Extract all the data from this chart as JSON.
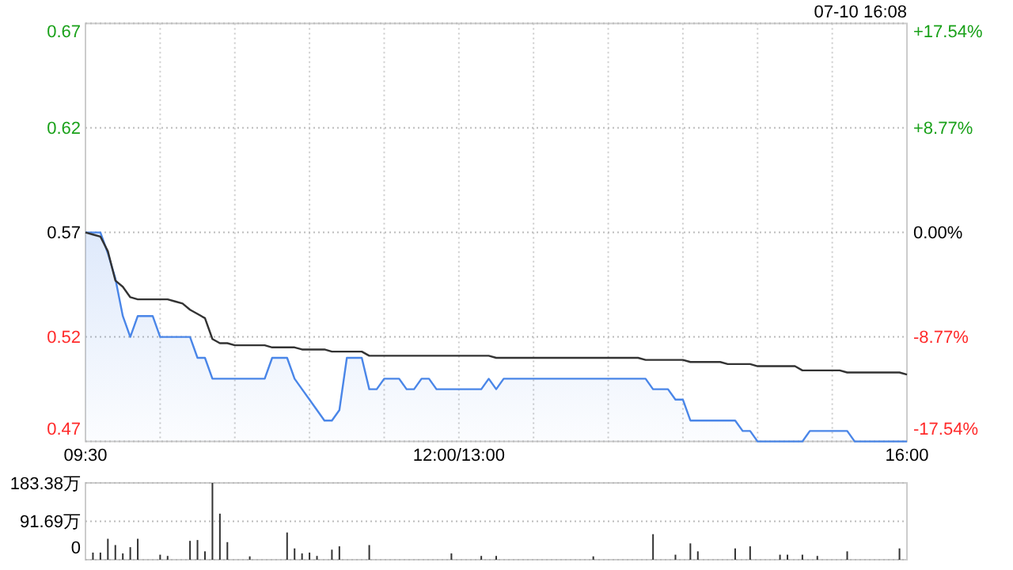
{
  "chart_data": [
    {
      "type": "line",
      "annotations": [
        "07-10 16:08"
      ],
      "categories": [
        "09:30",
        null,
        null,
        null,
        null,
        null,
        null,
        null,
        null,
        null,
        null,
        null,
        null,
        null,
        null,
        null,
        null,
        null,
        null,
        null,
        null,
        null,
        null,
        null,
        null,
        null,
        null,
        null,
        null,
        null,
        null,
        null,
        null,
        null,
        null,
        null,
        null,
        null,
        null,
        null,
        null,
        null,
        null,
        null,
        null,
        null,
        null,
        null,
        null,
        null,
        "12:00/13:00",
        null,
        null,
        null,
        null,
        null,
        null,
        null,
        null,
        null,
        null,
        null,
        null,
        null,
        null,
        null,
        null,
        null,
        null,
        null,
        null,
        null,
        null,
        null,
        null,
        null,
        null,
        null,
        null,
        null,
        null,
        null,
        null,
        null,
        null,
        null,
        null,
        null,
        null,
        null,
        null,
        null,
        null,
        null,
        null,
        null,
        null,
        null,
        null,
        null,
        null,
        null,
        null,
        null,
        null,
        null,
        null,
        null,
        null,
        null,
        "16:00"
      ],
      "ylim": [
        0.47,
        0.67
      ],
      "yticks": [
        0.47,
        0.52,
        0.57,
        0.62,
        0.67
      ],
      "y2lim": [
        -17.54,
        17.54
      ],
      "y2ticks": [
        {
          "value": -17.54,
          "label": "-17.54%"
        },
        {
          "value": -8.77,
          "label": "-8.77%"
        },
        {
          "value": 0,
          "label": "0.00%"
        },
        {
          "value": 8.77,
          "label": "+8.77%"
        },
        {
          "value": 17.54,
          "label": "+17.54%"
        }
      ],
      "grid": true,
      "series": [
        {
          "type": "area",
          "color": "#4a86e8",
          "values": [
            0.57,
            0.57,
            0.57,
            0.56,
            0.548,
            0.53,
            0.52,
            0.53,
            0.53,
            0.53,
            0.52,
            0.52,
            0.52,
            0.52,
            0.52,
            0.51,
            0.51,
            0.5,
            0.5,
            0.5,
            0.5,
            0.5,
            0.5,
            0.5,
            0.5,
            0.51,
            0.51,
            0.51,
            0.5,
            0.495,
            0.49,
            0.485,
            0.48,
            0.48,
            0.485,
            0.51,
            0.51,
            0.51,
            0.495,
            0.495,
            0.5,
            0.5,
            0.5,
            0.495,
            0.495,
            0.5,
            0.5,
            0.495,
            0.495,
            0.495,
            0.495,
            0.495,
            0.495,
            0.495,
            0.5,
            0.495,
            0.5,
            0.5,
            0.5,
            0.5,
            0.5,
            0.5,
            0.5,
            0.5,
            0.5,
            0.5,
            0.5,
            0.5,
            0.5,
            0.5,
            0.5,
            0.5,
            0.5,
            0.5,
            0.5,
            0.5,
            0.495,
            0.495,
            0.495,
            0.49,
            0.49,
            0.48,
            0.48,
            0.48,
            0.48,
            0.48,
            0.48,
            0.48,
            0.475,
            0.475,
            0.47,
            0.47,
            0.47,
            0.47,
            0.47,
            0.47,
            0.47,
            0.475,
            0.475,
            0.475,
            0.475,
            0.475,
            0.475,
            0.47,
            0.47,
            0.47,
            0.47,
            0.47,
            0.47,
            0.47,
            0.47
          ]
        },
        {
          "type": "line",
          "color": "#333333",
          "values": [
            0.57,
            0.569,
            0.568,
            0.561,
            0.547,
            0.544,
            0.539,
            0.538,
            0.538,
            0.538,
            0.538,
            0.538,
            0.537,
            0.536,
            0.533,
            0.531,
            0.529,
            0.519,
            0.517,
            0.517,
            0.516,
            0.516,
            0.516,
            0.516,
            0.516,
            0.515,
            0.515,
            0.515,
            0.515,
            0.514,
            0.514,
            0.514,
            0.514,
            0.513,
            0.513,
            0.513,
            0.513,
            0.513,
            0.511,
            0.511,
            0.511,
            0.511,
            0.511,
            0.511,
            0.511,
            0.511,
            0.511,
            0.511,
            0.511,
            0.511,
            0.511,
            0.511,
            0.511,
            0.511,
            0.511,
            0.51,
            0.51,
            0.51,
            0.51,
            0.51,
            0.51,
            0.51,
            0.51,
            0.51,
            0.51,
            0.51,
            0.51,
            0.51,
            0.51,
            0.51,
            0.51,
            0.51,
            0.51,
            0.51,
            0.51,
            0.509,
            0.509,
            0.509,
            0.509,
            0.509,
            0.509,
            0.508,
            0.508,
            0.508,
            0.508,
            0.508,
            0.507,
            0.507,
            0.507,
            0.507,
            0.506,
            0.506,
            0.506,
            0.506,
            0.506,
            0.506,
            0.504,
            0.504,
            0.504,
            0.504,
            0.504,
            0.504,
            0.503,
            0.503,
            0.503,
            0.503,
            0.503,
            0.503,
            0.503,
            0.503,
            0.502
          ]
        }
      ]
    },
    {
      "type": "bar",
      "tick_labels": "y",
      "color": "#333333",
      "grid": "y",
      "categories": [
        null,
        null,
        null,
        null,
        null,
        null,
        null,
        null,
        null,
        null,
        null,
        null,
        null,
        null,
        null,
        null,
        null,
        null,
        null,
        null,
        null,
        null,
        null,
        null,
        null,
        null,
        null,
        null,
        null,
        null,
        null,
        null,
        null,
        null,
        null,
        null,
        null,
        null,
        null,
        null,
        null,
        null,
        null,
        null,
        null,
        null,
        null,
        null,
        null,
        null,
        null,
        null,
        null,
        null,
        null,
        null,
        null,
        null,
        null,
        null,
        null,
        null,
        null,
        null,
        null,
        null,
        null,
        null,
        null,
        null,
        null,
        null,
        null,
        null,
        null,
        null,
        null,
        null,
        null,
        null,
        null,
        null,
        null,
        null,
        null,
        null,
        null,
        null,
        null,
        null,
        null,
        null,
        null,
        null,
        null,
        null,
        null,
        null,
        null,
        null,
        null,
        null,
        null,
        null,
        null,
        null,
        null,
        null,
        null,
        null,
        null
      ],
      "ylim": [
        0,
        183.38
      ],
      "yticks": [
        {
          "value": 0,
          "label": "0"
        },
        {
          "value": 91.69,
          "label": "91.69万"
        },
        {
          "value": 183.38,
          "label": "183.38万"
        }
      ],
      "values": [
        null,
        17,
        17,
        50,
        35,
        15,
        30,
        50,
        null,
        null,
        12,
        9,
        null,
        null,
        45,
        47,
        20,
        183.38,
        110,
        42,
        null,
        null,
        8,
        null,
        null,
        null,
        null,
        65,
        27,
        15,
        17,
        9,
        null,
        24,
        32,
        null,
        null,
        null,
        35,
        null,
        null,
        null,
        null,
        null,
        null,
        null,
        null,
        null,
        null,
        15,
        null,
        null,
        null,
        9,
        null,
        9,
        null,
        null,
        null,
        null,
        null,
        null,
        null,
        null,
        null,
        null,
        null,
        null,
        8,
        null,
        null,
        null,
        null,
        null,
        null,
        null,
        61,
        null,
        null,
        12,
        null,
        39,
        20,
        null,
        null,
        null,
        null,
        27,
        null,
        32,
        null,
        null,
        null,
        12,
        12,
        null,
        12,
        null,
        9,
        null,
        null,
        null,
        20,
        null,
        null,
        null,
        null,
        null,
        null,
        27,
        null
      ]
    }
  ]
}
